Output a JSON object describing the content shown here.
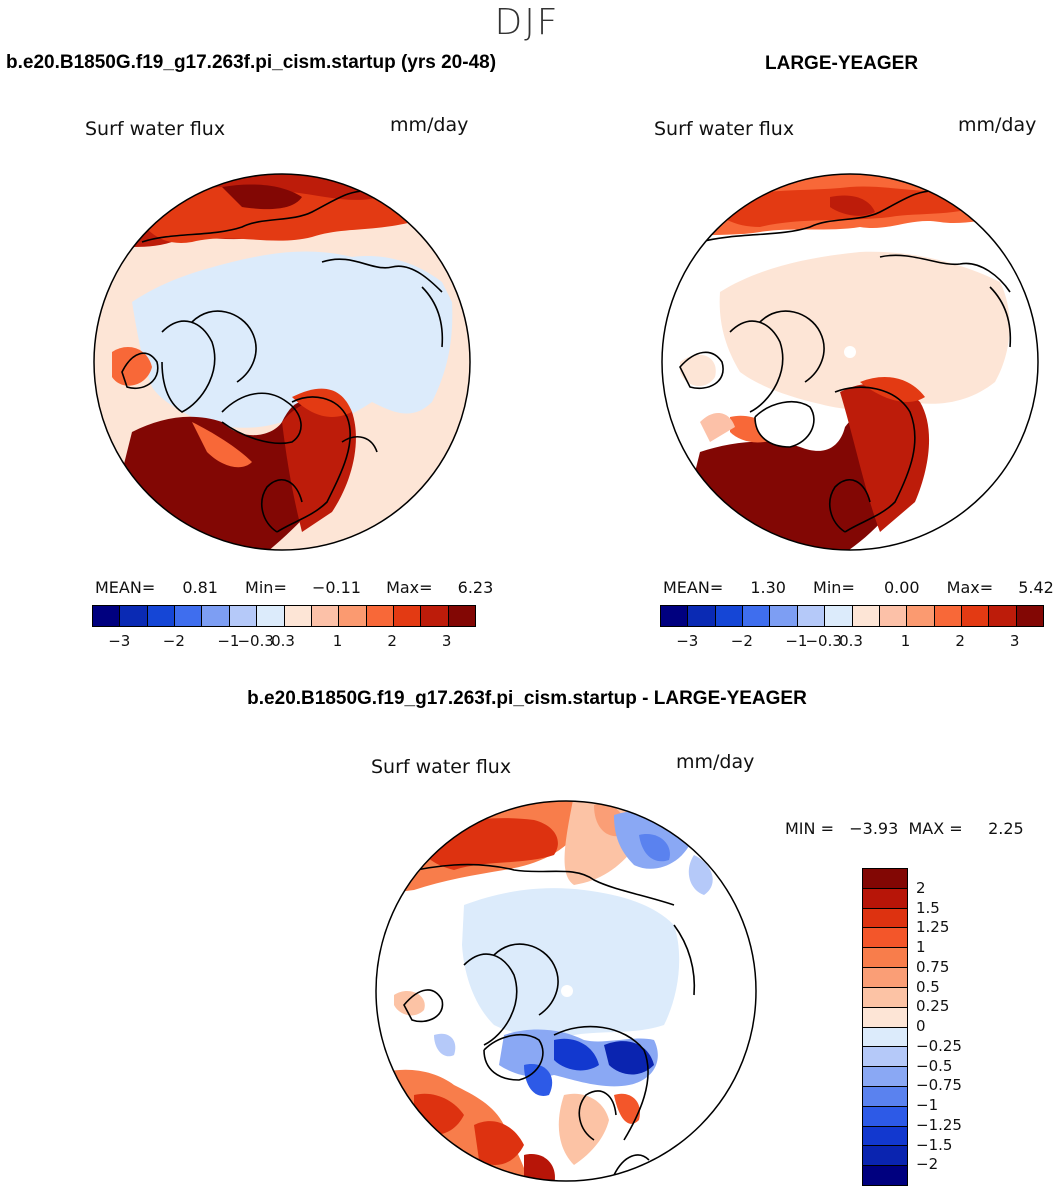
{
  "season": "DJF",
  "panels": {
    "case1": {
      "title": "b.e20.B1850G.f19_g17.263f.pi_cism.startup (yrs 20-48)",
      "variable": "Surf water flux",
      "units": "mm/day",
      "stats": {
        "mean_label": "MEAN=",
        "mean": "0.81",
        "min_label": "Min=",
        "min": "−0.11",
        "max_label": "Max=",
        "max": "6.23"
      }
    },
    "case2": {
      "title": "LARGE-YEAGER",
      "variable": "Surf water flux",
      "units": "mm/day",
      "stats": {
        "mean_label": "MEAN=",
        "mean": "1.30",
        "min_label": "Min=",
        "min": "0.00",
        "max_label": "Max=",
        "max": "5.42"
      }
    },
    "diff": {
      "title": "b.e20.B1850G.f19_g17.263f.pi_cism.startup - LARGE-YEAGER",
      "variable": "Surf water flux",
      "units": "mm/day",
      "minmax": "MIN =   −3.93  MAX =     2.25"
    }
  },
  "colorbars": {
    "abs": {
      "colors": [
        "#00007f",
        "#0a2ab4",
        "#1546d6",
        "#3f6eee",
        "#7d9ef3",
        "#b5c9f9",
        "#dcebfb",
        "#fde5d6",
        "#fcc1a8",
        "#fb9a70",
        "#f86838",
        "#e33a13",
        "#bd1c0a",
        "#820704"
      ],
      "ticks": [
        "−3",
        "−2",
        "−1",
        "−0.3",
        "0.3",
        "1",
        "2",
        "3"
      ]
    },
    "diff": {
      "colors": [
        "#820704",
        "#b71508",
        "#dd3210",
        "#f3562a",
        "#f87d4b",
        "#fa9e76",
        "#fcc3a5",
        "#fde5d6",
        "#dcebfb",
        "#b5c9f9",
        "#8aa8f4",
        "#5a82ef",
        "#2d5ae7",
        "#1238cf",
        "#0a24b0",
        "#00007f"
      ],
      "ticks": [
        "2",
        "1.5",
        "1.25",
        "1",
        "0.75",
        "0.5",
        "0.25",
        "0",
        "−0.25",
        "−0.5",
        "−0.75",
        "−1",
        "−1.25",
        "−1.5",
        "−2"
      ]
    }
  }
}
